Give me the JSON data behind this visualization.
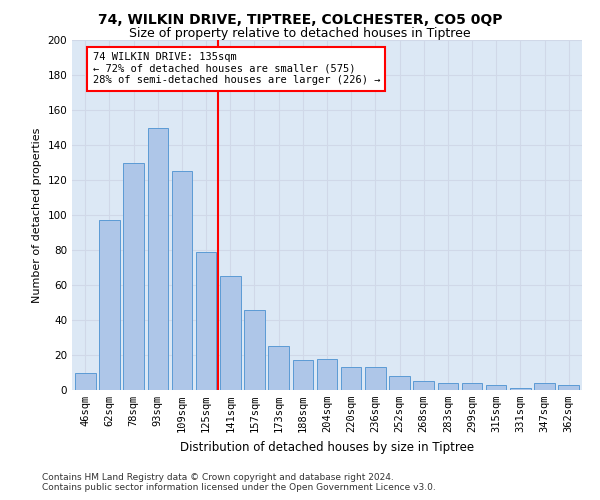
{
  "title1": "74, WILKIN DRIVE, TIPTREE, COLCHESTER, CO5 0QP",
  "title2": "Size of property relative to detached houses in Tiptree",
  "xlabel": "Distribution of detached houses by size in Tiptree",
  "ylabel": "Number of detached properties",
  "categories": [
    "46sqm",
    "62sqm",
    "78sqm",
    "93sqm",
    "109sqm",
    "125sqm",
    "141sqm",
    "157sqm",
    "173sqm",
    "188sqm",
    "204sqm",
    "220sqm",
    "236sqm",
    "252sqm",
    "268sqm",
    "283sqm",
    "299sqm",
    "315sqm",
    "331sqm",
    "347sqm",
    "362sqm"
  ],
  "values": [
    10,
    97,
    130,
    150,
    125,
    79,
    65,
    46,
    25,
    17,
    18,
    13,
    13,
    8,
    5,
    4,
    4,
    3,
    1,
    4,
    3
  ],
  "bar_color": "#aec6e8",
  "bar_edgecolor": "#5b9bd5",
  "vline_color": "red",
  "annotation_text": "74 WILKIN DRIVE: 135sqm\n← 72% of detached houses are smaller (575)\n28% of semi-detached houses are larger (226) →",
  "annotation_box_color": "white",
  "annotation_box_edgecolor": "red",
  "ylim": [
    0,
    200
  ],
  "yticks": [
    0,
    20,
    40,
    60,
    80,
    100,
    120,
    140,
    160,
    180,
    200
  ],
  "grid_color": "#d0d8e8",
  "background_color": "#dce8f5",
  "footer1": "Contains HM Land Registry data © Crown copyright and database right 2024.",
  "footer2": "Contains public sector information licensed under the Open Government Licence v3.0.",
  "title1_fontsize": 10,
  "title2_fontsize": 9,
  "xlabel_fontsize": 8.5,
  "ylabel_fontsize": 8,
  "tick_fontsize": 7.5,
  "annotation_fontsize": 7.5,
  "footer_fontsize": 6.5
}
